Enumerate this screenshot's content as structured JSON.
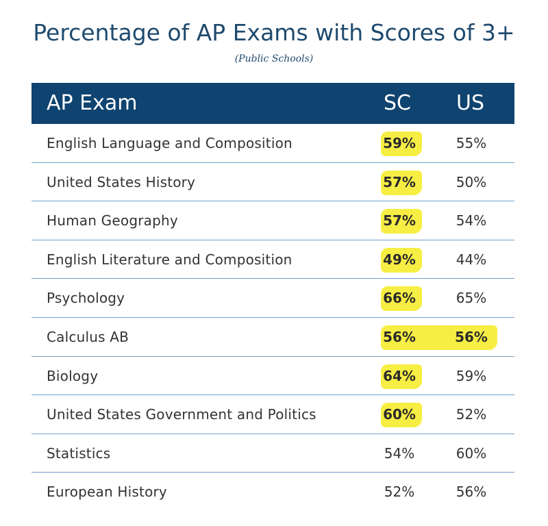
{
  "title": "Percentage of AP Exams with Scores of 3+",
  "subtitle": "(Public Schools)",
  "colors": {
    "header_bg": "#0f4370",
    "title": "#1f4a6e",
    "highlight": "#f7ee44",
    "row_divider": "#6fa0c9"
  },
  "chart_data": {
    "type": "table",
    "title": "Percentage of AP Exams with Scores of 3+",
    "subtitle": "(Public Schools)",
    "columns": [
      "AP Exam",
      "SC",
      "US"
    ],
    "rows": [
      {
        "exam": "English Language and Composition",
        "sc": "59%",
        "us": "55%",
        "highlight": "sc"
      },
      {
        "exam": "United States History",
        "sc": "57%",
        "us": "50%",
        "highlight": "sc"
      },
      {
        "exam": "Human Geography",
        "sc": "57%",
        "us": "54%",
        "highlight": "sc"
      },
      {
        "exam": "English Literature and Composition",
        "sc": "49%",
        "us": "44%",
        "highlight": "sc"
      },
      {
        "exam": "Psychology",
        "sc": "66%",
        "us": "65%",
        "highlight": "sc"
      },
      {
        "exam": "Calculus AB",
        "sc": "56%",
        "us": "56%",
        "highlight": "both"
      },
      {
        "exam": "Biology",
        "sc": "64%",
        "us": "59%",
        "highlight": "sc"
      },
      {
        "exam": "United States Government and Politics",
        "sc": "60%",
        "us": "52%",
        "highlight": "sc"
      },
      {
        "exam": "Statistics",
        "sc": "54%",
        "us": "60%",
        "highlight": "none"
      },
      {
        "exam": "European History",
        "sc": "52%",
        "us": "56%",
        "highlight": "none"
      }
    ]
  }
}
